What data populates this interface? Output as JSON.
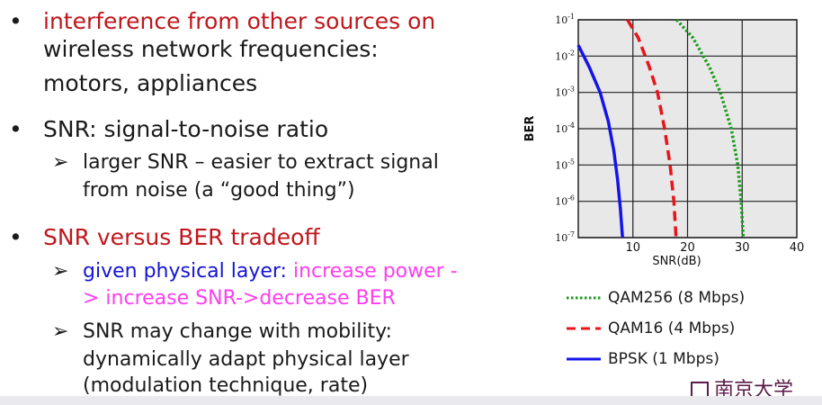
{
  "bullets": [
    {
      "lines": [
        "interference from other sources on",
        "wireless network frequencies:",
        "motors, appliances"
      ]
    },
    {
      "line": "SNR: signal-to-noise ratio",
      "sub": {
        "lines": [
          "larger SNR – easier to extract signal",
          "from noise (a “good thing”)"
        ]
      }
    },
    {
      "line": "SNR versus BER tradeoff",
      "subs": [
        {
          "part1": "given physical layer: ",
          "part2": "increase power -",
          "line2": "> increase SNR->decrease BER"
        },
        {
          "lines": [
            "SNR may change with mobility:",
            "dynamically adapt physical layer",
            "(modulation technique, rate)"
          ]
        }
      ]
    }
  ],
  "bullet_glyph": "•",
  "arrow_glyph": "➢",
  "colors": {
    "red": "#c0161b",
    "blue": "#1414d4",
    "magenta": "#ff3df0",
    "qam256": "#1a9a1a",
    "qam16": "#e8141a",
    "bpsk": "#1414e8"
  },
  "chart_data": {
    "type": "line",
    "xlabel": "SNR(dB)",
    "ylabel": "BER",
    "x_ticks": [
      10,
      20,
      30,
      40
    ],
    "y_ticks": [
      "10-1",
      "10-2",
      "10-3",
      "10-4",
      "10-5",
      "10-6",
      "10-7"
    ],
    "xlim": [
      0,
      40
    ],
    "ylim_log10": [
      -7,
      -1
    ],
    "grid": true,
    "series": [
      {
        "name": "QAM256 (8 Mbps)",
        "style": "dotted",
        "x": [
          18,
          21,
          24,
          26,
          28,
          29.2,
          29.8,
          30.2
        ],
        "y": [
          -1,
          -1.5,
          -2.3,
          -3,
          -4,
          -5,
          -6,
          -7
        ]
      },
      {
        "name": "QAM16 (4 Mbps)",
        "style": "dashed",
        "x": [
          9,
          11,
          13,
          14.5,
          15.8,
          16.8,
          17.5,
          17.9
        ],
        "y": [
          -1,
          -1.5,
          -2.3,
          -3,
          -4,
          -5,
          -6,
          -7
        ]
      },
      {
        "name": "BPSK (1 Mbps)",
        "style": "solid",
        "x": [
          0,
          2,
          4,
          5.5,
          6.5,
          7.2,
          7.7,
          8.1
        ],
        "y": [
          -1.7,
          -2.3,
          -3,
          -3.8,
          -4.6,
          -5.4,
          -6.2,
          -7
        ]
      }
    ]
  },
  "logo_text": "南京大学"
}
